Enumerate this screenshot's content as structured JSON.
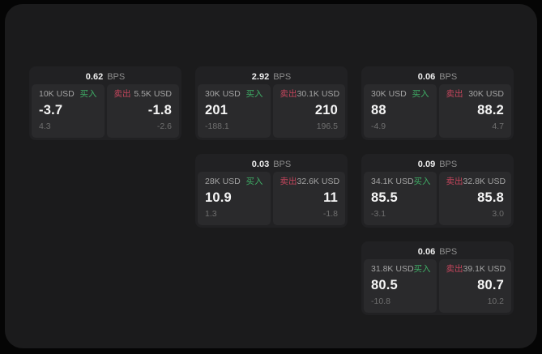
{
  "colors": {
    "page_bg": "#050505",
    "panel_bg": "#1b1b1c",
    "card_bg": "#212123",
    "pane_bg": "#2a2a2c",
    "buy_accent": "#3fae66",
    "sell_accent": "#c4455c"
  },
  "cards": [
    {
      "row": 1,
      "col": 1,
      "bps_value": "0.62",
      "bps_unit": "BPS",
      "buy": {
        "size": "10K USD",
        "label": "买入",
        "value": "-3.7",
        "delta": "4.3"
      },
      "sell": {
        "label": "卖出",
        "size": "5.5K USD",
        "value": "-1.8",
        "delta": "-2.6"
      }
    },
    {
      "row": 1,
      "col": 2,
      "bps_value": "2.92",
      "bps_unit": "BPS",
      "buy": {
        "size": "30K USD",
        "label": "买入",
        "value": "201",
        "delta": "-188.1"
      },
      "sell": {
        "label": "卖出",
        "size": "30.1K USD",
        "value": "210",
        "delta": "196.5"
      }
    },
    {
      "row": 1,
      "col": 3,
      "bps_value": "0.06",
      "bps_unit": "BPS",
      "buy": {
        "size": "30K USD",
        "label": "买入",
        "value": "88",
        "delta": "-4.9"
      },
      "sell": {
        "label": "卖出",
        "size": "30K USD",
        "value": "88.2",
        "delta": "4.7"
      }
    },
    {
      "row": 2,
      "col": 2,
      "bps_value": "0.03",
      "bps_unit": "BPS",
      "buy": {
        "size": "28K USD",
        "label": "买入",
        "value": "10.9",
        "delta": "1.3"
      },
      "sell": {
        "label": "卖出",
        "size": "32.6K USD",
        "value": "11",
        "delta": "-1.8"
      }
    },
    {
      "row": 2,
      "col": 3,
      "bps_value": "0.09",
      "bps_unit": "BPS",
      "buy": {
        "size": "34.1K USD",
        "label": "买入",
        "value": "85.5",
        "delta": "-3.1"
      },
      "sell": {
        "label": "卖出",
        "size": "32.8K USD",
        "value": "85.8",
        "delta": "3.0"
      }
    },
    {
      "row": 3,
      "col": 3,
      "bps_value": "0.06",
      "bps_unit": "BPS",
      "buy": {
        "size": "31.8K USD",
        "label": "买入",
        "value": "80.5",
        "delta": "-10.8"
      },
      "sell": {
        "label": "卖出",
        "size": "39.1K USD",
        "value": "80.7",
        "delta": "10.2"
      }
    }
  ]
}
